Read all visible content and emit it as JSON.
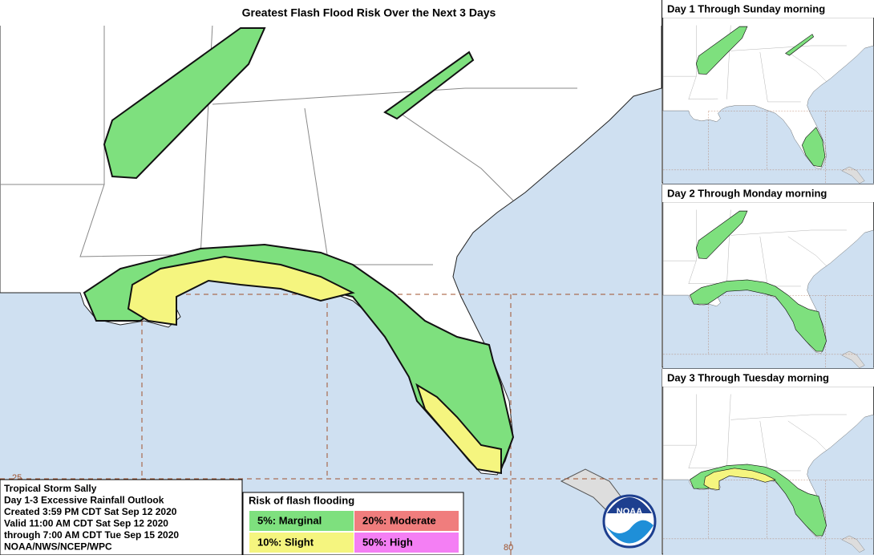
{
  "title": "Greatest Flash Flood Risk Over the Next 3 Days",
  "panels": [
    {
      "label": "Day 1 Through Sunday morning"
    },
    {
      "label": "Day 2 Through Monday morning"
    },
    {
      "label": "Day 3 Through Tuesday morning"
    }
  ],
  "info": {
    "lines": [
      "Tropical Storm Sally",
      "Day 1-3 Excessive Rainfall Outlook",
      "Created 3:59 PM CDT Sat Sep 12 2020",
      "Valid 11:00 AM CDT Sat Sep 12 2020",
      "through 7:00 AM CDT Tue Sep 15 2020",
      "NOAA/NWS/NCEP/WPC"
    ]
  },
  "legend": {
    "title": "Risk of flash flooding",
    "items": [
      {
        "label": "5%: Marginal",
        "color": "#7ee07e"
      },
      {
        "label": "20%: Moderate",
        "color": "#f07d7d"
      },
      {
        "label": "10%: Slight",
        "color": "#f5f57f"
      },
      {
        "label": "50%: High",
        "color": "#f47ff4"
      }
    ]
  },
  "grid_labels": [
    "25",
    "80"
  ],
  "logo": "NOAA"
}
